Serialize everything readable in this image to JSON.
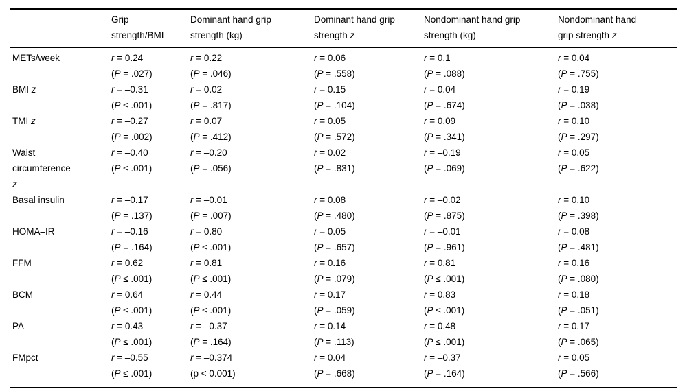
{
  "page": {
    "background": "#ffffff",
    "text_color": "#000000",
    "rule_color": "#000000"
  },
  "symbols": {
    "r_symbol": "r",
    "p_symbol": "P",
    "paren_open": "(",
    "paren_close": ")"
  },
  "table": {
    "columns": [
      {
        "label": ""
      },
      {
        "label": "Grip strength/BMI"
      },
      {
        "label": "Dominant hand grip strength (kg)"
      },
      {
        "label": "Dominant hand grip strength",
        "italic_suffix": "z"
      },
      {
        "label": "Nondominant hand grip strength (kg)"
      },
      {
        "label": "Nondominant hand grip strength",
        "italic_suffix": "z"
      }
    ],
    "rows": [
      {
        "label": "METs/week",
        "cells": [
          {
            "r": "= 0.24",
            "p": "= .027"
          },
          {
            "r": "= 0.22",
            "p": "= .046"
          },
          {
            "r": "= 0.06",
            "p": "= .558"
          },
          {
            "r": "= 0.1",
            "p": "= .088"
          },
          {
            "r": "= 0.04",
            "p": "= .755"
          }
        ]
      },
      {
        "label": "BMI",
        "italic_suffix": "z",
        "cells": [
          {
            "r": "= –0.31",
            "p": "≤ .001"
          },
          {
            "r": "= 0.02",
            "p": "= .817"
          },
          {
            "r": "= 0.15",
            "p": "= .104"
          },
          {
            "r": "= 0.04",
            "p": "= .674"
          },
          {
            "r": "= 0.19",
            "p": "= .038"
          }
        ]
      },
      {
        "label": "TMI",
        "italic_suffix": "z",
        "cells": [
          {
            "r": "= –0.27",
            "p": "= .002"
          },
          {
            "r": "= 0.07",
            "p": "= .412"
          },
          {
            "r": "= 0.05",
            "p": "= .572"
          },
          {
            "r": "= 0.09",
            "p": "= .341"
          },
          {
            "r": "= 0.10",
            "p": "= .297"
          }
        ]
      },
      {
        "label": "Waist circumference",
        "italic_suffix": "z",
        "cells": [
          {
            "r": "= –0.40",
            "p": "≤ .001"
          },
          {
            "r": "= –0.20",
            "p": "= .056"
          },
          {
            "r": "= 0.02",
            "p": "= .831"
          },
          {
            "r": "= –0.19",
            "p": "= .069"
          },
          {
            "r": "= 0.05",
            "p": "= .622"
          }
        ]
      },
      {
        "label": "Basal insulin",
        "cells": [
          {
            "r": "= –0.17",
            "p": "= .137"
          },
          {
            "r": "= –0.01",
            "p": "= .007"
          },
          {
            "r": "= 0.08",
            "p": "= .480"
          },
          {
            "r": "= –0.02",
            "p": "= .875"
          },
          {
            "r": "= 0.10",
            "p": "= .398"
          }
        ]
      },
      {
        "label": "HOMA–IR",
        "cells": [
          {
            "r": "= –0.16",
            "p": "= .164"
          },
          {
            "r": "= 0.80",
            "p": "≤ .001"
          },
          {
            "r": "= 0.05",
            "p": "= .657"
          },
          {
            "r": "= –0.01",
            "p": "= .961"
          },
          {
            "r": "= 0.08",
            "p": "= .481"
          }
        ]
      },
      {
        "label": "FFM",
        "cells": [
          {
            "r": "= 0.62",
            "p": "≤ .001"
          },
          {
            "r": "= 0.81",
            "p": "≤ .001"
          },
          {
            "r": "= 0.16",
            "p": "= .079"
          },
          {
            "r": "= 0.81",
            "p": "≤ .001"
          },
          {
            "r": "= 0.16",
            "p": "= .080"
          }
        ]
      },
      {
        "label": "BCM",
        "cells": [
          {
            "r": "= 0.64",
            "p": "≤ .001"
          },
          {
            "r": "= 0.44",
            "p": "≤ .001"
          },
          {
            "r": "= 0.17",
            "p": "= .059"
          },
          {
            "r": "= 0.83",
            "p": "≤ .001"
          },
          {
            "r": "= 0.18",
            "p": "= .051"
          }
        ]
      },
      {
        "label": "PA",
        "cells": [
          {
            "r": "= 0.43",
            "p": "≤ .001"
          },
          {
            "r": "= –0.37",
            "p": "= .164"
          },
          {
            "r": "= 0.14",
            "p": "= .113"
          },
          {
            "r": "= 0.48",
            "p": "≤ .001"
          },
          {
            "r": "= 0.17",
            "p": "= .065"
          }
        ]
      },
      {
        "label": "FMpct",
        "cells": [
          {
            "r": "= –0.55",
            "p": "≤ .001"
          },
          {
            "r": "= –0.374",
            "p_literal": "(p < 0.001)"
          },
          {
            "r": "= 0.04",
            "p": "= .668"
          },
          {
            "r": "= –0.37",
            "p": "= .164"
          },
          {
            "r": "= 0.05",
            "p": "= .566"
          }
        ]
      }
    ]
  }
}
